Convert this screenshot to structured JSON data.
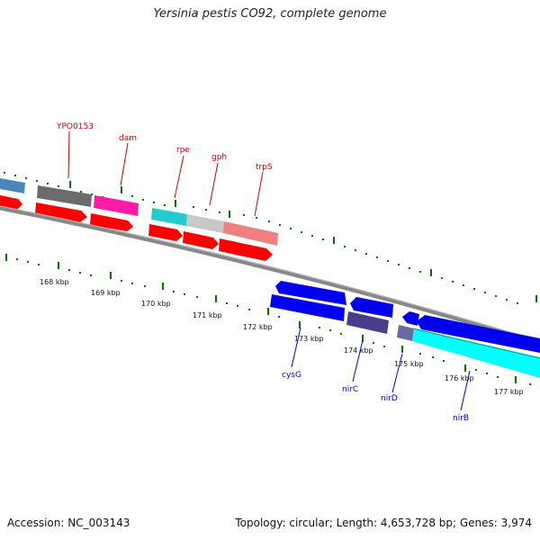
{
  "title": "Yersinia pestis CO92, complete genome",
  "footer": {
    "accession": "Accession: NC_003143",
    "summary": "Topology: circular; Length: 4,653,728 bp; Genes: 3,974"
  },
  "colors": {
    "forward_label": "#cc0000",
    "reverse_label": "#0000cc",
    "tick_green": "#007700",
    "backbone": "#8a8a8a"
  },
  "kbp_labels": [
    "168 kbp",
    "169 kbp",
    "170 kbp",
    "171 kbp",
    "172 kbp",
    "173 kbp",
    "174 kbp",
    "175 kbp",
    "176 kbp",
    "177 kbp"
  ],
  "forward_gene_labels": [
    "YPO0153",
    "dam",
    "rpe",
    "gph",
    "trpS"
  ],
  "reverse_gene_labels": [
    "cysG",
    "nirC",
    "nirD",
    "nirB"
  ],
  "features": [
    {
      "track": "fwd-outer",
      "color": "#4a86b8",
      "kind": "bar"
    },
    {
      "track": "fwd-outer",
      "color": "#6b6b6b",
      "kind": "bar"
    },
    {
      "track": "fwd-outer",
      "color": "#ff1aa8",
      "kind": "bar"
    },
    {
      "track": "fwd-outer",
      "color": "#22cccc",
      "kind": "bar"
    },
    {
      "track": "fwd-outer",
      "color": "#c8c8c8",
      "kind": "bar"
    },
    {
      "track": "fwd-outer",
      "color": "#f08080",
      "kind": "bar"
    },
    {
      "track": "fwd-inner",
      "color": "#ff0000",
      "kind": "arrow"
    },
    {
      "track": "rev-outer",
      "color": "#0000ee",
      "kind": "arrow"
    },
    {
      "track": "rev-inner",
      "color": "#483d8b",
      "kind": "bar"
    },
    {
      "track": "rev-inner",
      "color": "#00ffff",
      "kind": "bar"
    }
  ]
}
